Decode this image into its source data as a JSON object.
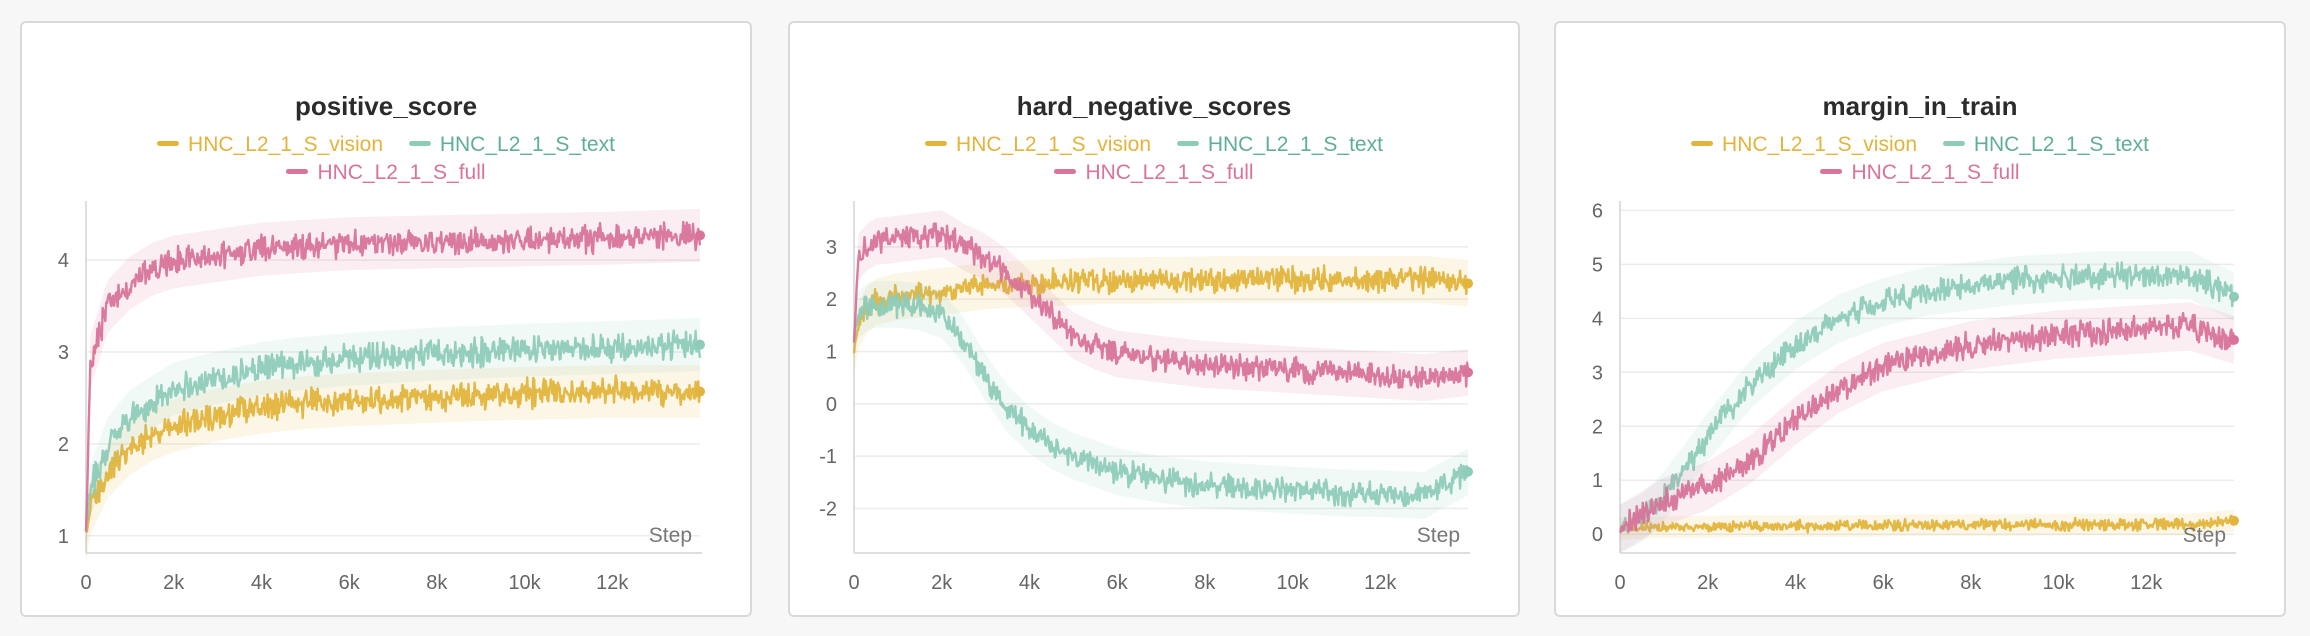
{
  "panels": [
    {
      "title": "positive_score",
      "legend_layout": "two-rows",
      "series": [
        {
          "name": "HNC_L2_1_S_vision",
          "color": "#e3b43c"
        },
        {
          "name": "HNC_L2_1_S_text",
          "color": "#8ecbb8"
        },
        {
          "name": "HNC_L2_1_S_full",
          "color": "#d9739a"
        }
      ],
      "xlabel": "Step",
      "x_ticks": [
        "0",
        "2k",
        "4k",
        "6k",
        "8k",
        "10k",
        "12k"
      ],
      "y_ticks": [
        "1",
        "2",
        "3",
        "4"
      ]
    },
    {
      "title": "hard_negative_scores",
      "legend_layout": "two-rows",
      "series": [
        {
          "name": "HNC_L2_1_S_vision",
          "color": "#e3b43c"
        },
        {
          "name": "HNC_L2_1_S_text",
          "color": "#8ecbb8"
        },
        {
          "name": "HNC_L2_1_S_full",
          "color": "#d9739a"
        }
      ],
      "xlabel": "Step",
      "x_ticks": [
        "0",
        "2k",
        "4k",
        "6k",
        "8k",
        "10k",
        "12k"
      ],
      "y_ticks": [
        "3",
        "2",
        "1",
        "0",
        "-1",
        "-2"
      ]
    },
    {
      "title": "margin_in_train",
      "legend_layout": "two-rows",
      "series": [
        {
          "name": "HNC_L2_1_S_vision",
          "color": "#e3b43c"
        },
        {
          "name": "HNC_L2_1_S_text",
          "color": "#8ecbb8"
        },
        {
          "name": "HNC_L2_1_S_full",
          "color": "#d9739a"
        }
      ],
      "xlabel": "Step",
      "x_ticks": [
        "0",
        "2k",
        "4k",
        "6k",
        "8k",
        "10k",
        "12k"
      ],
      "y_ticks": [
        "0",
        "1",
        "2",
        "3",
        "4",
        "5",
        "6"
      ]
    }
  ],
  "chart_data": [
    {
      "type": "line",
      "title": "positive_score",
      "xlabel": "Step",
      "ylabel": "",
      "xlim": [
        0,
        14000
      ],
      "ylim": [
        0.9,
        4.6
      ],
      "x": [
        0,
        100,
        500,
        1000,
        1500,
        2000,
        3000,
        4000,
        5000,
        6000,
        8000,
        10000,
        12000,
        14000
      ],
      "series": [
        {
          "name": "HNC_L2_1_S_vision",
          "values": [
            1.0,
            1.3,
            1.7,
            1.95,
            2.1,
            2.2,
            2.32,
            2.4,
            2.45,
            2.48,
            2.52,
            2.55,
            2.57,
            2.57
          ]
        },
        {
          "name": "HNC_L2_1_S_text",
          "values": [
            1.1,
            1.5,
            2.0,
            2.3,
            2.45,
            2.6,
            2.72,
            2.82,
            2.88,
            2.92,
            2.98,
            3.02,
            3.05,
            3.08
          ]
        },
        {
          "name": "HNC_L2_1_S_full",
          "values": [
            1.0,
            2.9,
            3.5,
            3.75,
            3.9,
            3.98,
            4.05,
            4.12,
            4.15,
            4.18,
            4.2,
            4.22,
            4.24,
            4.27
          ]
        }
      ]
    },
    {
      "type": "line",
      "title": "hard_negative_scores",
      "xlabel": "Step",
      "ylabel": "",
      "xlim": [
        0,
        14000
      ],
      "ylim": [
        -2.7,
        3.8
      ],
      "x": [
        0,
        100,
        300,
        500,
        1000,
        1500,
        2000,
        2500,
        3000,
        3500,
        4000,
        4500,
        5000,
        5500,
        6000,
        7000,
        8000,
        9000,
        10000,
        11000,
        12000,
        13000,
        14000
      ],
      "series": [
        {
          "name": "HNC_L2_1_S_vision",
          "values": [
            1.0,
            1.5,
            1.8,
            1.95,
            2.05,
            2.1,
            2.15,
            2.2,
            2.25,
            2.28,
            2.3,
            2.32,
            2.33,
            2.35,
            2.35,
            2.36,
            2.37,
            2.38,
            2.38,
            2.38,
            2.38,
            2.38,
            2.3
          ]
        },
        {
          "name": "HNC_L2_1_S_text",
          "values": [
            1.3,
            1.7,
            1.85,
            1.9,
            1.9,
            1.85,
            1.7,
            1.2,
            0.5,
            -0.1,
            -0.5,
            -0.8,
            -1.0,
            -1.15,
            -1.3,
            -1.45,
            -1.55,
            -1.6,
            -1.65,
            -1.7,
            -1.72,
            -1.75,
            -1.3
          ]
        },
        {
          "name": "HNC_L2_1_S_full",
          "values": [
            1.2,
            2.8,
            3.0,
            3.1,
            3.15,
            3.2,
            3.25,
            3.0,
            2.8,
            2.5,
            2.1,
            1.7,
            1.3,
            1.1,
            0.95,
            0.85,
            0.75,
            0.7,
            0.65,
            0.6,
            0.55,
            0.5,
            0.6
          ]
        }
      ]
    },
    {
      "type": "line",
      "title": "margin_in_train",
      "xlabel": "Step",
      "ylabel": "",
      "xlim": [
        0,
        14000
      ],
      "ylim": [
        -0.2,
        6.1
      ],
      "x": [
        0,
        500,
        1000,
        2000,
        3000,
        4000,
        5000,
        6000,
        7000,
        8000,
        9000,
        10000,
        11000,
        12000,
        13000,
        14000
      ],
      "series": [
        {
          "name": "HNC_L2_1_S_vision",
          "values": [
            0.1,
            0.12,
            0.13,
            0.14,
            0.15,
            0.15,
            0.15,
            0.16,
            0.17,
            0.17,
            0.17,
            0.18,
            0.18,
            0.18,
            0.18,
            0.25
          ]
        },
        {
          "name": "HNC_L2_1_S_text",
          "values": [
            0.1,
            0.3,
            0.7,
            1.8,
            2.8,
            3.5,
            4.0,
            4.3,
            4.5,
            4.6,
            4.7,
            4.75,
            4.8,
            4.8,
            4.8,
            4.4
          ]
        },
        {
          "name": "HNC_L2_1_S_full",
          "values": [
            0.1,
            0.35,
            0.6,
            0.9,
            1.4,
            2.1,
            2.7,
            3.1,
            3.3,
            3.5,
            3.6,
            3.7,
            3.75,
            3.8,
            3.85,
            3.6
          ]
        }
      ]
    }
  ]
}
